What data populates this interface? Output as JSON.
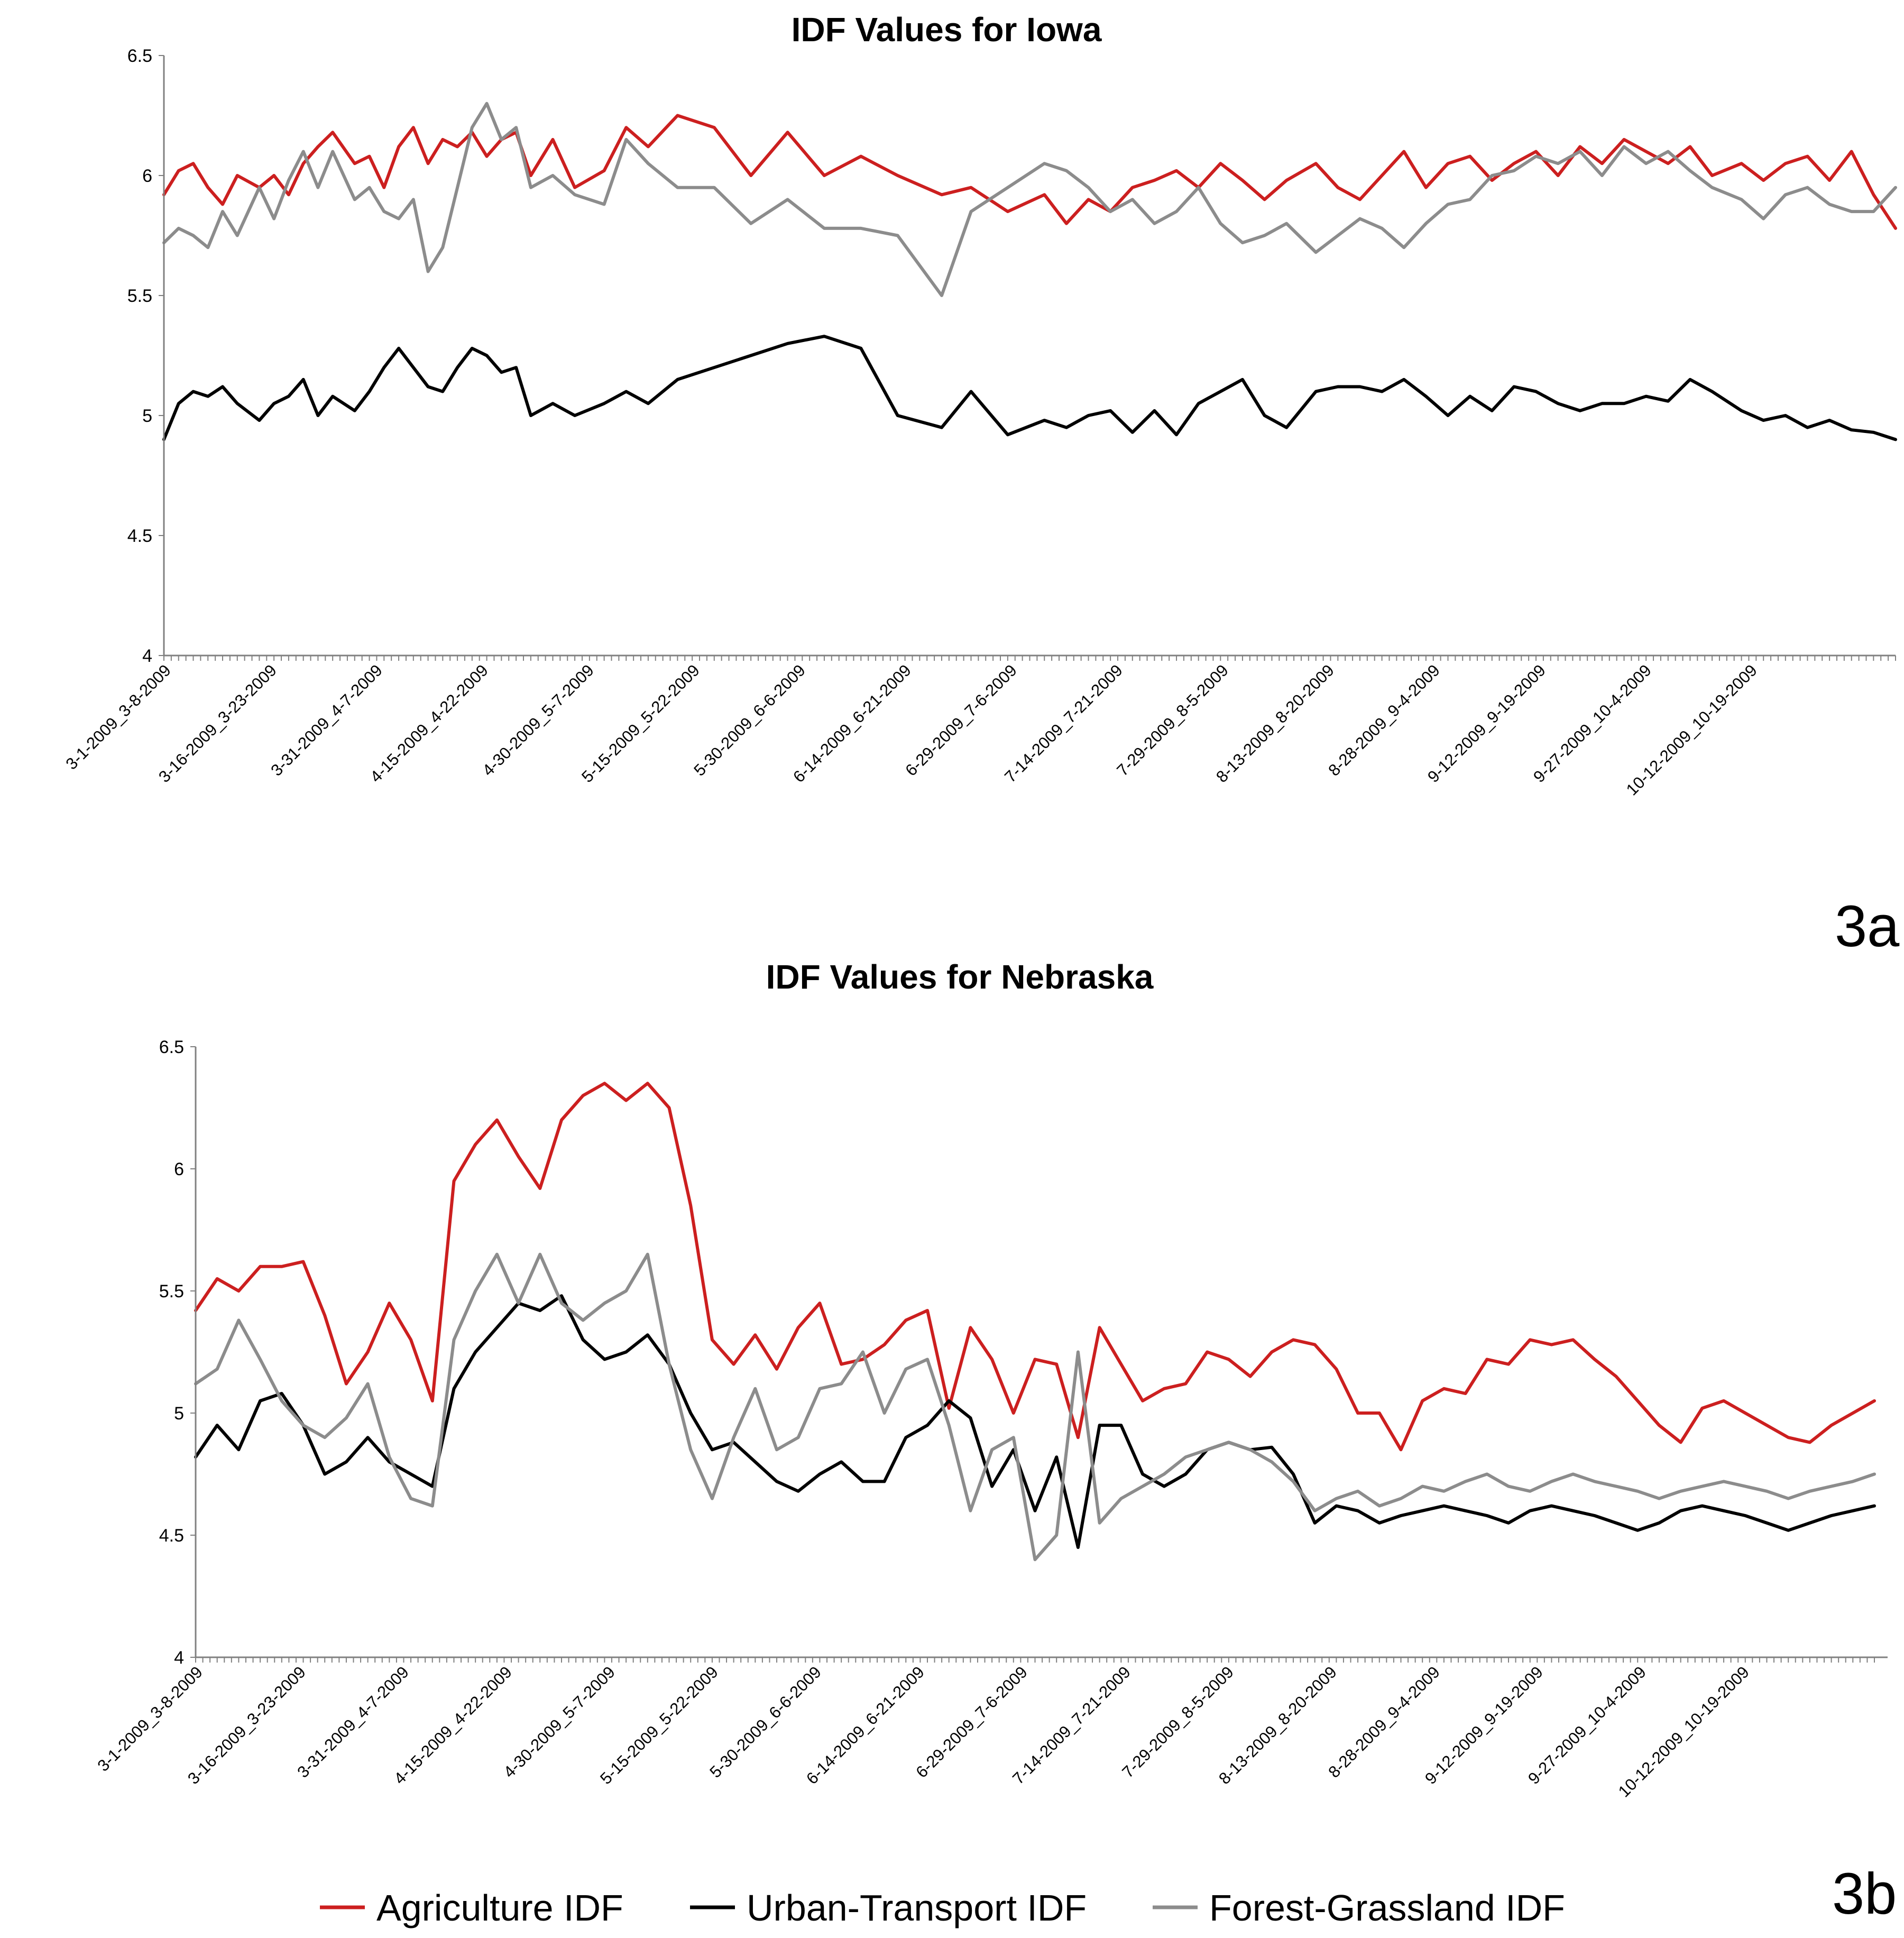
{
  "colors": {
    "Agriculture IDF": "#cc1f1f",
    "Urban-Transport IDF": "#000000",
    "Forest-Grassland IDF": "#8c8c8c"
  },
  "panel_labels": [
    "3a",
    "3b"
  ],
  "legend": {
    "items": [
      "Agriculture IDF",
      "Urban-Transport IDF",
      "Forest-Grassland IDF"
    ]
  },
  "chart_data": [
    {
      "type": "line",
      "title": "IDF Values for Iowa",
      "xlabel": "",
      "ylabel": "",
      "ylim": [
        4,
        6.5
      ],
      "yticks": [
        "4",
        "4.5",
        "5",
        "5.5",
        "6",
        "6.5"
      ],
      "grid": false,
      "legend": "bottom",
      "tick_labels": [
        "3-1-2009_3-8-2009",
        "3-16-2009_3-23-2009",
        "3-31-2009_4-7-2009",
        "4-15-2009_4-22-2009",
        "4-30-2009_5-7-2009",
        "5-15-2009_5-22-2009",
        "5-30-2009_6-6-2009",
        "6-14-2009_6-21-2009",
        "6-29-2009_7-6-2009",
        "7-14-2009_7-21-2009",
        "7-29-2009_8-5-2009",
        "8-13-2009_8-20-2009",
        "8-28-2009_9-4-2009",
        "9-12-2009_9-19-2009",
        "9-27-2009_10-4-2009",
        "10-12-2009_10-19-2009"
      ],
      "series": [
        {
          "name": "Agriculture IDF",
          "x": [
            0,
            2,
            4,
            6,
            8,
            10,
            13,
            15,
            17,
            19,
            21,
            23,
            26,
            28,
            30,
            32,
            34,
            36,
            38,
            40,
            42,
            44,
            46,
            48,
            50,
            53,
            56,
            60,
            63,
            66,
            70,
            75,
            80,
            85,
            90,
            95,
            100,
            106,
            110,
            115,
            120,
            123,
            126,
            129,
            132,
            135,
            138,
            141,
            144,
            147,
            150,
            153,
            157,
            160,
            163,
            166,
            169,
            172,
            175,
            178,
            181,
            184,
            187,
            190,
            193,
            196,
            199,
            202,
            205,
            208,
            211,
            215,
            218,
            221,
            224,
            227,
            230,
            233,
            236
          ],
          "values": [
            5.92,
            6.02,
            6.05,
            5.95,
            5.88,
            6.0,
            5.95,
            6.0,
            5.92,
            6.05,
            6.12,
            6.18,
            6.05,
            6.08,
            5.95,
            6.12,
            6.2,
            6.05,
            6.15,
            6.12,
            6.18,
            6.08,
            6.15,
            6.18,
            6.0,
            6.15,
            5.95,
            6.02,
            6.2,
            6.12,
            6.25,
            6.2,
            6.0,
            6.18,
            6.0,
            6.08,
            6.0,
            5.92,
            5.95,
            5.85,
            5.92,
            5.8,
            5.9,
            5.85,
            5.95,
            5.98,
            6.02,
            5.95,
            6.05,
            5.98,
            5.9,
            5.98,
            6.05,
            5.95,
            5.9,
            6.0,
            6.1,
            5.95,
            6.05,
            6.08,
            5.98,
            6.05,
            6.1,
            6.0,
            6.12,
            6.05,
            6.15,
            6.1,
            6.05,
            6.12,
            6.0,
            6.05,
            5.98,
            6.05,
            6.08,
            5.98,
            6.1,
            5.92,
            5.78
          ]
        },
        {
          "name": "Urban-Transport IDF",
          "x": [
            0,
            2,
            4,
            6,
            8,
            10,
            13,
            15,
            17,
            19,
            21,
            23,
            26,
            28,
            30,
            32,
            34,
            36,
            38,
            40,
            42,
            44,
            46,
            48,
            50,
            53,
            56,
            60,
            63,
            66,
            70,
            75,
            80,
            85,
            90,
            95,
            100,
            106,
            110,
            115,
            120,
            123,
            126,
            129,
            132,
            135,
            138,
            141,
            144,
            147,
            150,
            153,
            157,
            160,
            163,
            166,
            169,
            172,
            175,
            178,
            181,
            184,
            187,
            190,
            193,
            196,
            199,
            202,
            205,
            208,
            211,
            215,
            218,
            221,
            224,
            227,
            230,
            233,
            236
          ],
          "values": [
            4.9,
            5.05,
            5.1,
            5.08,
            5.12,
            5.05,
            4.98,
            5.05,
            5.08,
            5.15,
            5.0,
            5.08,
            5.02,
            5.1,
            5.2,
            5.28,
            5.2,
            5.12,
            5.1,
            5.2,
            5.28,
            5.25,
            5.18,
            5.2,
            5.0,
            5.05,
            5.0,
            5.05,
            5.1,
            5.05,
            5.15,
            5.2,
            5.25,
            5.3,
            5.33,
            5.28,
            5.0,
            4.95,
            5.1,
            4.92,
            4.98,
            4.95,
            5.0,
            5.02,
            4.93,
            5.02,
            4.92,
            5.05,
            5.1,
            5.15,
            5.0,
            4.95,
            5.1,
            5.12,
            5.12,
            5.1,
            5.15,
            5.08,
            5.0,
            5.08,
            5.02,
            5.12,
            5.1,
            5.05,
            5.02,
            5.05,
            5.05,
            5.08,
            5.06,
            5.15,
            5.1,
            5.02,
            4.98,
            5.0,
            4.95,
            4.98,
            4.94,
            4.93,
            4.9
          ]
        },
        {
          "name": "Forest-Grassland IDF",
          "x": [
            0,
            2,
            4,
            6,
            8,
            10,
            13,
            15,
            17,
            19,
            21,
            23,
            26,
            28,
            30,
            32,
            34,
            36,
            38,
            40,
            42,
            44,
            46,
            48,
            50,
            53,
            56,
            60,
            63,
            66,
            70,
            75,
            80,
            85,
            90,
            95,
            100,
            106,
            110,
            115,
            120,
            123,
            126,
            129,
            132,
            135,
            138,
            141,
            144,
            147,
            150,
            153,
            157,
            160,
            163,
            166,
            169,
            172,
            175,
            178,
            181,
            184,
            187,
            190,
            193,
            196,
            199,
            202,
            205,
            208,
            211,
            215,
            218,
            221,
            224,
            227,
            230,
            233,
            236
          ],
          "values": [
            5.72,
            5.78,
            5.75,
            5.7,
            5.85,
            5.75,
            5.95,
            5.82,
            5.98,
            6.1,
            5.95,
            6.1,
            5.9,
            5.95,
            5.85,
            5.82,
            5.9,
            5.6,
            5.7,
            5.95,
            6.2,
            6.3,
            6.15,
            6.2,
            5.95,
            6.0,
            5.92,
            5.88,
            6.15,
            6.05,
            5.95,
            5.95,
            5.8,
            5.9,
            5.78,
            5.78,
            5.75,
            5.5,
            5.85,
            5.95,
            6.05,
            6.02,
            5.95,
            5.85,
            5.9,
            5.8,
            5.85,
            5.95,
            5.8,
            5.72,
            5.75,
            5.8,
            5.68,
            5.75,
            5.82,
            5.78,
            5.7,
            5.8,
            5.88,
            5.9,
            6.0,
            6.02,
            6.08,
            6.05,
            6.1,
            6.0,
            6.12,
            6.05,
            6.1,
            6.02,
            5.95,
            5.9,
            5.82,
            5.92,
            5.95,
            5.88,
            5.85,
            5.85,
            5.95
          ]
        }
      ]
    },
    {
      "type": "line",
      "title": "IDF Values for Nebraska",
      "xlabel": "",
      "ylabel": "",
      "ylim": [
        4,
        6.5
      ],
      "yticks": [
        "4",
        "4.5",
        "5",
        "5.5",
        "6",
        "6.5"
      ],
      "grid": false,
      "legend": "bottom",
      "tick_labels": [
        "3-1-2009_3-8-2009",
        "3-16-2009_3-23-2009",
        "3-31-2009_4-7-2009",
        "4-15-2009_4-22-2009",
        "4-30-2009_5-7-2009",
        "5-15-2009_5-22-2009",
        "5-30-2009_6-6-2009",
        "6-14-2009_6-21-2009",
        "6-29-2009_7-6-2009",
        "7-14-2009_7-21-2009",
        "7-29-2009_8-5-2009",
        "8-13-2009_8-20-2009",
        "8-28-2009_9-4-2009",
        "9-12-2009_9-19-2009",
        "9-27-2009_10-4-2009",
        "10-12-2009_10-19-2009"
      ],
      "series": [
        {
          "name": "Agriculture IDF",
          "x": [
            0,
            3,
            6,
            9,
            12,
            15,
            18,
            21,
            24,
            27,
            30,
            33,
            36,
            39,
            42,
            45,
            48,
            51,
            54,
            57,
            60,
            63,
            66,
            69,
            72,
            75,
            78,
            81,
            84,
            87,
            90,
            93,
            96,
            99,
            102,
            105,
            108,
            111,
            114,
            117,
            120,
            123,
            126,
            129,
            132,
            135,
            138,
            141,
            144,
            147,
            150,
            153,
            156,
            159,
            162,
            165,
            168,
            171,
            174,
            177,
            180,
            183,
            186,
            189,
            192,
            195,
            198,
            201,
            204,
            207,
            210,
            213,
            216,
            219,
            222,
            225,
            228,
            231,
            234
          ],
          "values": [
            5.42,
            5.55,
            5.5,
            5.6,
            5.6,
            5.62,
            5.4,
            5.12,
            5.25,
            5.45,
            5.3,
            5.05,
            5.95,
            6.1,
            6.2,
            6.05,
            5.92,
            6.2,
            6.3,
            6.35,
            6.28,
            6.35,
            6.25,
            5.85,
            5.3,
            5.2,
            5.32,
            5.18,
            5.35,
            5.45,
            5.2,
            5.22,
            5.28,
            5.38,
            5.42,
            5.02,
            5.35,
            5.22,
            5.0,
            5.22,
            5.2,
            4.9,
            5.35,
            5.2,
            5.05,
            5.1,
            5.12,
            5.25,
            5.22,
            5.15,
            5.25,
            5.3,
            5.28,
            5.18,
            5.0,
            5.0,
            4.85,
            5.05,
            5.1,
            5.08,
            5.22,
            5.2,
            5.3,
            5.28,
            5.3,
            5.22,
            5.15,
            5.05,
            4.95,
            4.88,
            5.02,
            5.05,
            5.0,
            4.95,
            4.9,
            4.88,
            4.95,
            5.0,
            5.05
          ]
        },
        {
          "name": "Urban-Transport IDF",
          "x": [
            0,
            3,
            6,
            9,
            12,
            15,
            18,
            21,
            24,
            27,
            30,
            33,
            36,
            39,
            42,
            45,
            48,
            51,
            54,
            57,
            60,
            63,
            66,
            69,
            72,
            75,
            78,
            81,
            84,
            87,
            90,
            93,
            96,
            99,
            102,
            105,
            108,
            111,
            114,
            117,
            120,
            123,
            126,
            129,
            132,
            135,
            138,
            141,
            144,
            147,
            150,
            153,
            156,
            159,
            162,
            165,
            168,
            171,
            174,
            177,
            180,
            183,
            186,
            189,
            192,
            195,
            198,
            201,
            204,
            207,
            210,
            213,
            216,
            219,
            222,
            225,
            228,
            231,
            234
          ],
          "values": [
            4.82,
            4.95,
            4.85,
            5.05,
            5.08,
            4.95,
            4.75,
            4.8,
            4.9,
            4.8,
            4.75,
            4.7,
            5.1,
            5.25,
            5.35,
            5.45,
            5.42,
            5.48,
            5.3,
            5.22,
            5.25,
            5.32,
            5.2,
            5.0,
            4.85,
            4.88,
            4.8,
            4.72,
            4.68,
            4.75,
            4.8,
            4.72,
            4.72,
            4.9,
            4.95,
            5.05,
            4.98,
            4.7,
            4.85,
            4.6,
            4.82,
            4.45,
            4.95,
            4.95,
            4.75,
            4.7,
            4.75,
            4.85,
            4.88,
            4.85,
            4.86,
            4.75,
            4.55,
            4.62,
            4.6,
            4.55,
            4.58,
            4.6,
            4.62,
            4.6,
            4.58,
            4.55,
            4.6,
            4.62,
            4.6,
            4.58,
            4.55,
            4.52,
            4.55,
            4.6,
            4.62,
            4.6,
            4.58,
            4.55,
            4.52,
            4.55,
            4.58,
            4.6,
            4.62
          ]
        },
        {
          "name": "Forest-Grassland IDF",
          "x": [
            0,
            3,
            6,
            9,
            12,
            15,
            18,
            21,
            24,
            27,
            30,
            33,
            36,
            39,
            42,
            45,
            48,
            51,
            54,
            57,
            60,
            63,
            66,
            69,
            72,
            75,
            78,
            81,
            84,
            87,
            90,
            93,
            96,
            99,
            102,
            105,
            108,
            111,
            114,
            117,
            120,
            123,
            126,
            129,
            132,
            135,
            138,
            141,
            144,
            147,
            150,
            153,
            156,
            159,
            162,
            165,
            168,
            171,
            174,
            177,
            180,
            183,
            186,
            189,
            192,
            195,
            198,
            201,
            204,
            207,
            210,
            213,
            216,
            219,
            222,
            225,
            228,
            231,
            234
          ],
          "values": [
            5.12,
            5.18,
            5.38,
            5.22,
            5.05,
            4.95,
            4.9,
            4.98,
            5.12,
            4.82,
            4.65,
            4.62,
            5.3,
            5.5,
            5.65,
            5.45,
            5.65,
            5.45,
            5.38,
            5.45,
            5.5,
            5.65,
            5.2,
            4.85,
            4.65,
            4.9,
            5.1,
            4.85,
            4.9,
            5.1,
            5.12,
            5.25,
            5.0,
            5.18,
            5.22,
            4.95,
            4.6,
            4.85,
            4.9,
            4.4,
            4.5,
            5.25,
            4.55,
            4.65,
            4.7,
            4.75,
            4.82,
            4.85,
            4.88,
            4.85,
            4.8,
            4.72,
            4.6,
            4.65,
            4.68,
            4.62,
            4.65,
            4.7,
            4.68,
            4.72,
            4.75,
            4.7,
            4.68,
            4.72,
            4.75,
            4.72,
            4.7,
            4.68,
            4.65,
            4.68,
            4.7,
            4.72,
            4.7,
            4.68,
            4.65,
            4.68,
            4.7,
            4.72,
            4.75
          ]
        }
      ]
    }
  ]
}
